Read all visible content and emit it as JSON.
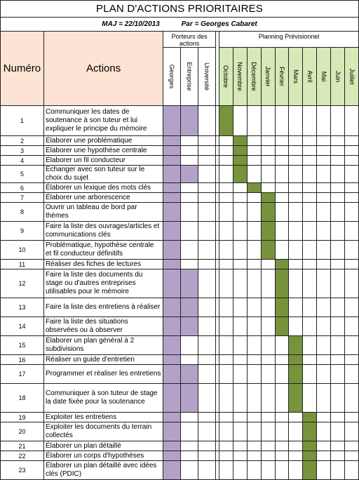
{
  "title": "PLAN D'ACTIONS PRIORITAIRES",
  "maj": "MAJ = 22/10/2013",
  "author": "Par = Georges Cabaret",
  "headers": {
    "numero": "Numéro",
    "actions": "Actions",
    "porteurs": "Porteurs des actions",
    "planning": "Planning Prévisionnel"
  },
  "owners": [
    "Georges",
    "Entreprise",
    "Université"
  ],
  "months": [
    "Octobre",
    "Novembre",
    "Décembre",
    "Janvier",
    "Février",
    "Mars",
    "Avril",
    "Mai",
    "Juin",
    "Juillet"
  ],
  "colors": {
    "header_fill": "#fde3d3",
    "owner_fill": "#b3a2c7",
    "bar_fill": "#77933c",
    "month_header_fill": "#d6e9b6"
  },
  "rows": [
    {
      "num": "1",
      "action": "Communiquer les dates de soutenance à son tuteur et lui expliquer le principe du mémoire",
      "owners": [
        1,
        1,
        0
      ],
      "months": [
        1,
        0,
        0,
        0,
        0,
        0,
        0,
        0,
        0,
        0
      ]
    },
    {
      "num": "2",
      "action": "Élaborer une problématique",
      "owners": [
        1,
        0,
        0
      ],
      "months": [
        0,
        1,
        0,
        0,
        0,
        0,
        0,
        0,
        0,
        0
      ]
    },
    {
      "num": "3",
      "action": "Élaborer une hypothèse centrale",
      "owners": [
        1,
        0,
        0
      ],
      "months": [
        0,
        1,
        0,
        0,
        0,
        0,
        0,
        0,
        0,
        0
      ]
    },
    {
      "num": "4",
      "action": "Élaborer un fil conducteur",
      "owners": [
        1,
        0,
        0
      ],
      "months": [
        0,
        1,
        0,
        0,
        0,
        0,
        0,
        0,
        0,
        0
      ]
    },
    {
      "num": "5",
      "action": "Échanger avec son tuteur sur le choix du sujet",
      "owners": [
        1,
        1,
        0
      ],
      "months": [
        0,
        1,
        0,
        0,
        0,
        0,
        0,
        0,
        0,
        0
      ]
    },
    {
      "num": "6",
      "action": "Élaborer un lexique des mots clés",
      "owners": [
        1,
        0,
        0
      ],
      "months": [
        0,
        0,
        1,
        0,
        0,
        0,
        0,
        0,
        0,
        0
      ]
    },
    {
      "num": "7",
      "action": "Élaborer une arborescence",
      "owners": [
        1,
        0,
        0
      ],
      "months": [
        0,
        0,
        0,
        1,
        0,
        0,
        0,
        0,
        0,
        0
      ]
    },
    {
      "num": "8",
      "action": "Ouvrir un tableau de bord par thèmes",
      "owners": [
        1,
        0,
        0
      ],
      "months": [
        0,
        0,
        0,
        1,
        0,
        0,
        0,
        0,
        0,
        0
      ]
    },
    {
      "num": "9",
      "action": "Faire la liste des ouvrages/articles et communications clés",
      "owners": [
        1,
        0,
        0
      ],
      "months": [
        0,
        0,
        0,
        1,
        0,
        0,
        0,
        0,
        0,
        0
      ]
    },
    {
      "num": "10",
      "action": "Problématique, hypothèse centrale et fil conducteur définitifs",
      "owners": [
        1,
        0,
        0
      ],
      "months": [
        0,
        0,
        0,
        1,
        0,
        0,
        0,
        0,
        0,
        0
      ]
    },
    {
      "num": "11",
      "action": "Réaliser des fiches de lectures",
      "owners": [
        1,
        0,
        0
      ],
      "months": [
        0,
        0,
        0,
        0,
        1,
        0,
        0,
        0,
        0,
        0
      ]
    },
    {
      "num": "12",
      "action": "Faire la liste des documents du stage ou d'autres entreprises utilisables pour le mémoire",
      "owners": [
        1,
        1,
        0
      ],
      "months": [
        0,
        0,
        0,
        0,
        1,
        0,
        0,
        0,
        0,
        0
      ]
    },
    {
      "num": "13",
      "action": "Faire la liste des entretiens à réaliser",
      "owners": [
        1,
        1,
        0
      ],
      "months": [
        0,
        0,
        0,
        0,
        1,
        0,
        0,
        0,
        0,
        0
      ]
    },
    {
      "num": "14",
      "action": "Faire la liste des situations observées ou à observer",
      "owners": [
        1,
        1,
        0
      ],
      "months": [
        0,
        0,
        0,
        0,
        1,
        0,
        0,
        0,
        0,
        0
      ]
    },
    {
      "num": "15",
      "action": "Élaborer un plan général à 2 subdivisions",
      "owners": [
        1,
        0,
        0
      ],
      "months": [
        0,
        0,
        0,
        0,
        0,
        1,
        0,
        0,
        0,
        0
      ]
    },
    {
      "num": "16",
      "action": "Réaliser un guide d'entretien",
      "owners": [
        1,
        0,
        0
      ],
      "months": [
        0,
        0,
        0,
        0,
        0,
        1,
        0,
        0,
        0,
        0
      ]
    },
    {
      "num": "17",
      "action": "Programmer et réaliser les entretiens",
      "owners": [
        1,
        1,
        0
      ],
      "months": [
        0,
        0,
        0,
        0,
        0,
        1,
        0,
        0,
        0,
        0
      ]
    },
    {
      "num": "18",
      "action": "Communiquer à son tuteur de stage la date fixée pour la soutenance",
      "owners": [
        1,
        1,
        0
      ],
      "months": [
        0,
        0,
        0,
        0,
        0,
        1,
        0,
        0,
        0,
        0
      ]
    },
    {
      "num": "19",
      "action": "Exploiter les entretiens",
      "owners": [
        1,
        0,
        0
      ],
      "months": [
        0,
        0,
        0,
        0,
        0,
        0,
        1,
        0,
        0,
        0
      ]
    },
    {
      "num": "20",
      "action": "Exploiter les documents du terrain collectés",
      "owners": [
        1,
        0,
        0
      ],
      "months": [
        0,
        0,
        0,
        0,
        0,
        0,
        1,
        0,
        0,
        0
      ]
    },
    {
      "num": "21",
      "action": "Élaborer un plan détaillé",
      "owners": [
        1,
        0,
        0
      ],
      "months": [
        0,
        0,
        0,
        0,
        0,
        0,
        1,
        0,
        0,
        0
      ]
    },
    {
      "num": "22",
      "action": "Élaborer un corps d'hypothèses",
      "owners": [
        1,
        0,
        0
      ],
      "months": [
        0,
        0,
        0,
        0,
        0,
        0,
        1,
        0,
        0,
        0
      ]
    },
    {
      "num": "23",
      "action": "Élaborer un plan détaillé avec idées clés (PDIC)",
      "owners": [
        1,
        0,
        0
      ],
      "months": [
        0,
        0,
        0,
        0,
        0,
        0,
        1,
        0,
        0,
        0
      ]
    }
  ]
}
